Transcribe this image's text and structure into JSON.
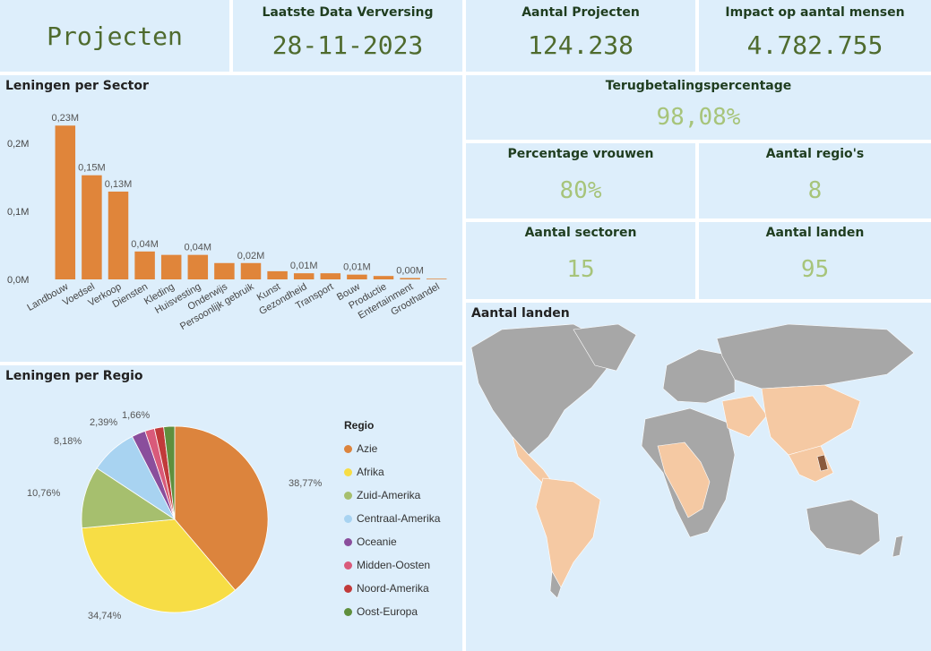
{
  "header": {
    "title": "Projecten"
  },
  "kpis": {
    "refresh": {
      "label": "Laatste Data Verversing",
      "value": "28-11-2023"
    },
    "projects": {
      "label": "Aantal Projecten",
      "value": "124.238"
    },
    "impact": {
      "label": "Impact op aantal mensen",
      "value": "4.782.755"
    },
    "repayment": {
      "label": "Terugbetalingspercentage",
      "value": "98,08%"
    },
    "women": {
      "label": "Percentage vrouwen",
      "value": "80%"
    },
    "regions": {
      "label": "Aantal regio's",
      "value": "8"
    },
    "sectors": {
      "label": "Aantal sectoren",
      "value": "15"
    },
    "countries": {
      "label": "Aantal landen",
      "value": "95"
    }
  },
  "colors": {
    "accent_green": "#a7c47a",
    "bar": "#e0853a",
    "tile_bg": "#ddeefb",
    "highlight_map": "#f5c9a3",
    "land": "#a7a7a7"
  },
  "sector_chart": {
    "title": "Leningen per Sector"
  },
  "region_chart": {
    "title": "Leningen per Regio",
    "legend_title": "Regio"
  },
  "map": {
    "title": "Aantal landen"
  },
  "chart_data": [
    {
      "type": "bar",
      "title": "Leningen per Sector",
      "categories": [
        "Landbouw",
        "Voedsel",
        "Verkoop",
        "Diensten",
        "Kleding",
        "Huisvesting",
        "Onderwijs",
        "Persoonlijk gebruik",
        "Kunst",
        "Gezondheid",
        "Transport",
        "Bouw",
        "Productie",
        "Entertainment",
        "Groothandel"
      ],
      "values": [
        0.226,
        0.153,
        0.129,
        0.041,
        0.036,
        0.036,
        0.024,
        0.024,
        0.012,
        0.009,
        0.009,
        0.007,
        0.005,
        0.002,
        0.001
      ],
      "data_labels": [
        "0,23M",
        "0,15M",
        "0,13M",
        "0,04M",
        "",
        "0,04M",
        "",
        "0,02M",
        "",
        "0,01M",
        "",
        "0,01M",
        "",
        "0,00M",
        ""
      ],
      "y_ticks": [
        "0,0M",
        "0,1M",
        "0,2M"
      ],
      "ylim": [
        0,
        0.25
      ]
    },
    {
      "type": "pie",
      "title": "Leningen per Regio",
      "categories": [
        "Azie",
        "Afrika",
        "Zuid-Amerika",
        "Centraal-Amerika",
        "Oceanie",
        "Midden-Oosten",
        "Noord-Amerika",
        "Oost-Europa"
      ],
      "values": [
        38.77,
        34.74,
        10.76,
        8.18,
        2.39,
        1.66,
        1.6,
        1.9
      ],
      "labels": [
        "38,77%",
        "34,74%",
        "10,76%",
        "8,18%",
        "2,39%",
        "1,66%",
        "",
        ""
      ],
      "colors": [
        "#dc843d",
        "#f7dd45",
        "#a6bf6e",
        "#a8d3f1",
        "#8a4e9c",
        "#d95a7a",
        "#c13a3a",
        "#5f8f3d"
      ]
    }
  ]
}
